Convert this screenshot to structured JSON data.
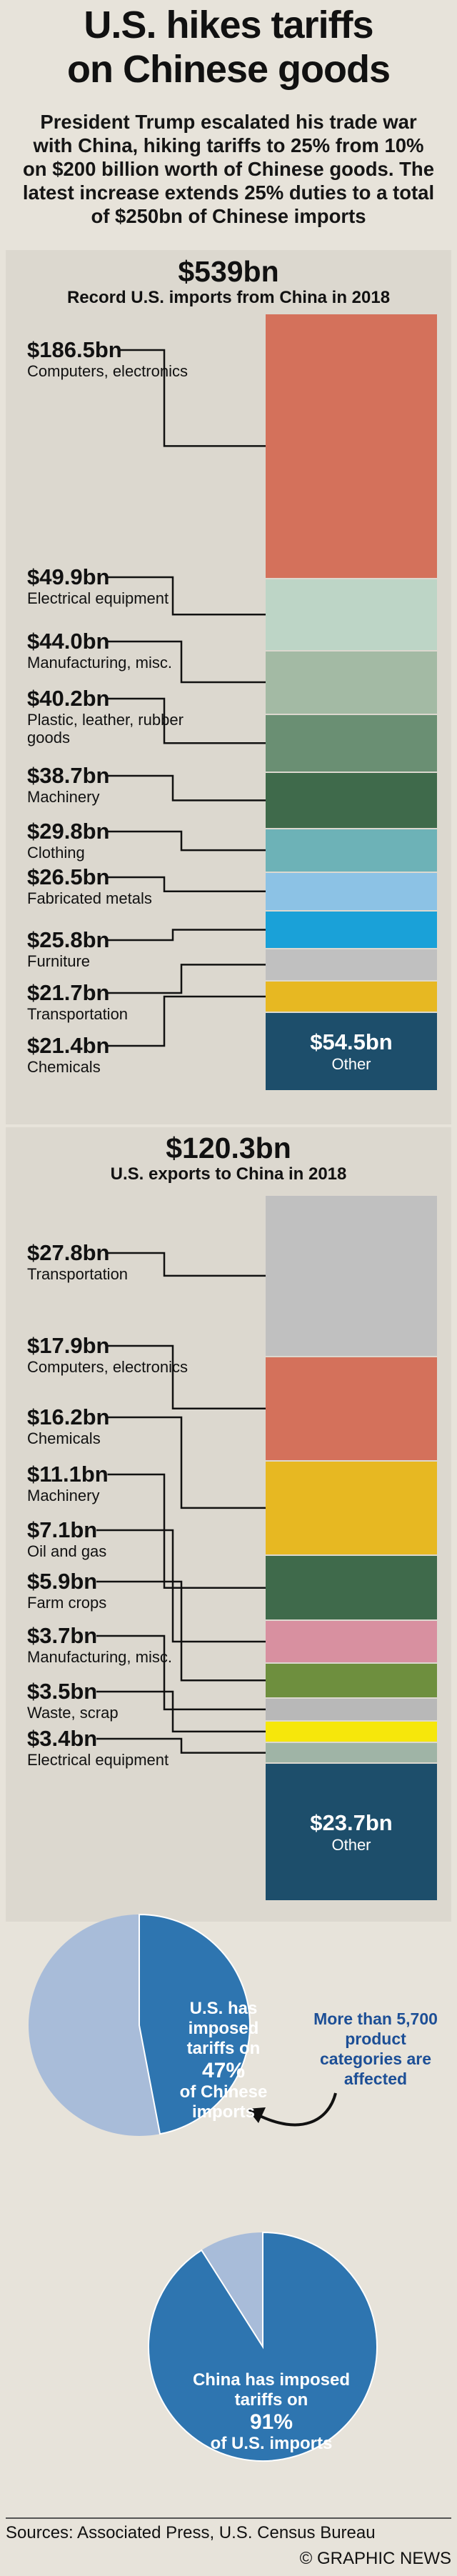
{
  "header": {
    "title_line1": "U.S. hikes tariffs",
    "title_line2": "on Chinese goods",
    "intro": "President Trump escalated his trade war with China, hiking tariffs to 25% from 10% on $200 billion worth of Chinese goods. The latest increase extends 25% duties to a total of $250bn of Chinese imports"
  },
  "chart_data": [
    {
      "type": "bar",
      "subtype": "stacked-column",
      "title": "$539bn",
      "subtitle": "Record U.S. imports from China in 2018",
      "unit": "$bn",
      "total": 539,
      "categories": [
        "Computers, electronics",
        "Electrical equipment",
        "Manufacturing, misc.",
        "Plastic, leather, rubber goods",
        "Machinery",
        "Clothing",
        "Fabricated metals",
        "Furniture",
        "Transportation",
        "Chemicals",
        "Other"
      ],
      "values": [
        186.5,
        49.9,
        44.0,
        40.2,
        38.7,
        29.8,
        26.5,
        25.8,
        21.7,
        21.4,
        54.5
      ],
      "labels": [
        "$186.5bn",
        "$49.9bn",
        "$44.0bn",
        "$40.2bn",
        "$38.7bn",
        "$29.8bn",
        "$26.5bn",
        "$25.8bn",
        "$21.7bn",
        "$21.4bn",
        "$54.5bn"
      ],
      "colors": [
        "#d4715b",
        "#bdd5c6",
        "#a3baa4",
        "#6a8f73",
        "#3f6a4b",
        "#6db2b7",
        "#8cc2e5",
        "#1aa1d8",
        "#c0c0c0",
        "#e7b822",
        "#1d4e6b"
      ]
    },
    {
      "type": "bar",
      "subtype": "stacked-column",
      "title": "$120.3bn",
      "subtitle": "U.S. exports to China in 2018",
      "unit": "$bn",
      "total": 120.3,
      "categories": [
        "Transportation",
        "Computers, electronics",
        "Chemicals",
        "Machinery",
        "Oil and gas",
        "Farm crops",
        "Manufacturing, misc.",
        "Waste, scrap",
        "Electrical equipment",
        "Other"
      ],
      "values": [
        27.8,
        17.9,
        16.2,
        11.1,
        7.1,
        5.9,
        3.7,
        3.5,
        3.4,
        23.7
      ],
      "labels": [
        "$27.8bn",
        "$17.9bn",
        "$16.2bn",
        "$11.1bn",
        "$7.1bn",
        "$5.9bn",
        "$3.7bn",
        "$3.5bn",
        "$3.4bn",
        "$23.7bn"
      ],
      "colors": [
        "#c0c0c0",
        "#d4715b",
        "#e7b822",
        "#3f6a4b",
        "#d890a0",
        "#6e8f3e",
        "#b8b8b8",
        "#f6e70b",
        "#9fb4a6",
        "#1d4e6b"
      ]
    },
    {
      "type": "pie",
      "label_lines": [
        "U.S. has",
        "imposed",
        "tariffs on"
      ],
      "percent": 47,
      "percent_label": "47%",
      "label_tail": [
        "of Chinese",
        "imports"
      ],
      "colors": {
        "tariffed": "#2e75b0",
        "rest": "#a8bcd9"
      }
    },
    {
      "type": "pie",
      "label_lines": [
        "China has imposed",
        "tariffs on"
      ],
      "percent": 91,
      "percent_label": "91%",
      "label_tail": [
        "of U.S. imports"
      ],
      "colors": {
        "tariffed": "#2e75b0",
        "rest": "#a8bcd9"
      }
    }
  ],
  "note": "More than 5,700 product categories are affected",
  "footer": {
    "sources": "Sources: Associated Press, U.S. Census Bureau",
    "credit": "© GRAPHIC NEWS"
  }
}
